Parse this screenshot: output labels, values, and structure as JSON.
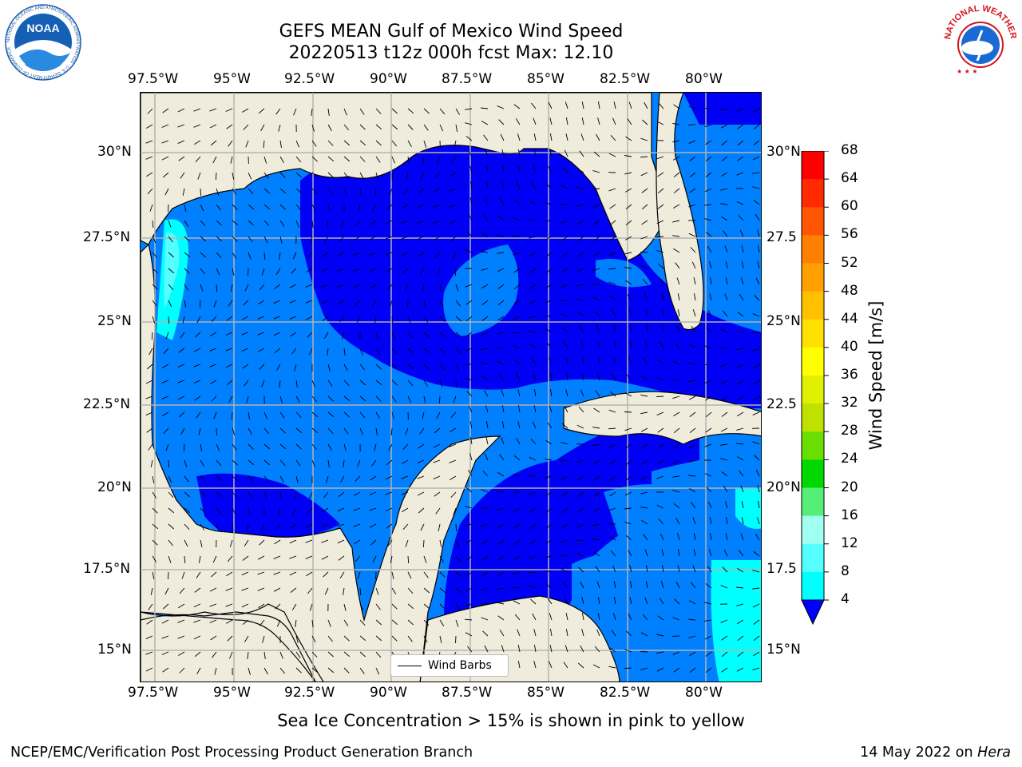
{
  "title": {
    "line1": "GEFS MEAN Gulf of Mexico Wind Speed",
    "line2": "20220513 t12z 000h fcst   Max: 12.10"
  },
  "axes": {
    "lon_labels": [
      "97.5°W",
      "95°W",
      "92.5°W",
      "90°W",
      "87.5°W",
      "85°W",
      "82.5°W",
      "80°W"
    ],
    "lat_labels": [
      "30°N",
      "27.5°N",
      "25°N",
      "22.5°N",
      "20°N",
      "17.5°N",
      "15°N"
    ],
    "lat_labels_right": [
      "30°N",
      "27.5",
      "25°N",
      "22.5",
      "20°N",
      "17.5",
      "15°N"
    ]
  },
  "legend": {
    "label": "Wind Barbs"
  },
  "colorbar": {
    "title": "Wind Speed [m/s]",
    "ticks": [
      "68",
      "64",
      "60",
      "56",
      "52",
      "48",
      "44",
      "40",
      "36",
      "32",
      "28",
      "24",
      "20",
      "16",
      "12",
      "8",
      "4"
    ],
    "colors": [
      "#ff0000",
      "#ff2a00",
      "#ff5500",
      "#ff7f00",
      "#ffa000",
      "#ffc000",
      "#ffe000",
      "#ffff00",
      "#e0f000",
      "#c0e000",
      "#6ade00",
      "#00d800",
      "#55ee77",
      "#a0fff0",
      "#55ffff",
      "#00ffff",
      "#0080ff"
    ],
    "extend_color": "#0000ff"
  },
  "colors": {
    "land": "#efecdc",
    "ocean_dark": "#0000f5",
    "ocean_mid": "#0080ff",
    "ocean_light": "#00ffff",
    "grid": "#b3b3b3"
  },
  "note": "Sea Ice Concentration > 15% is shown in pink to yellow",
  "footer": {
    "left": "NCEP/EMC/Verification Post Processing Product Generation Branch",
    "right_prefix": "14 May 2022 on ",
    "right_host": "Hera"
  },
  "logos": {
    "left": "NOAA",
    "left_ring": "NATIONAL OCEANIC AND ATMOSPHERIC ADMINISTRATION · U.S. DEPARTMENT OF COMMERCE",
    "right_ring": "NATIONAL WEATHER SERVICE"
  }
}
